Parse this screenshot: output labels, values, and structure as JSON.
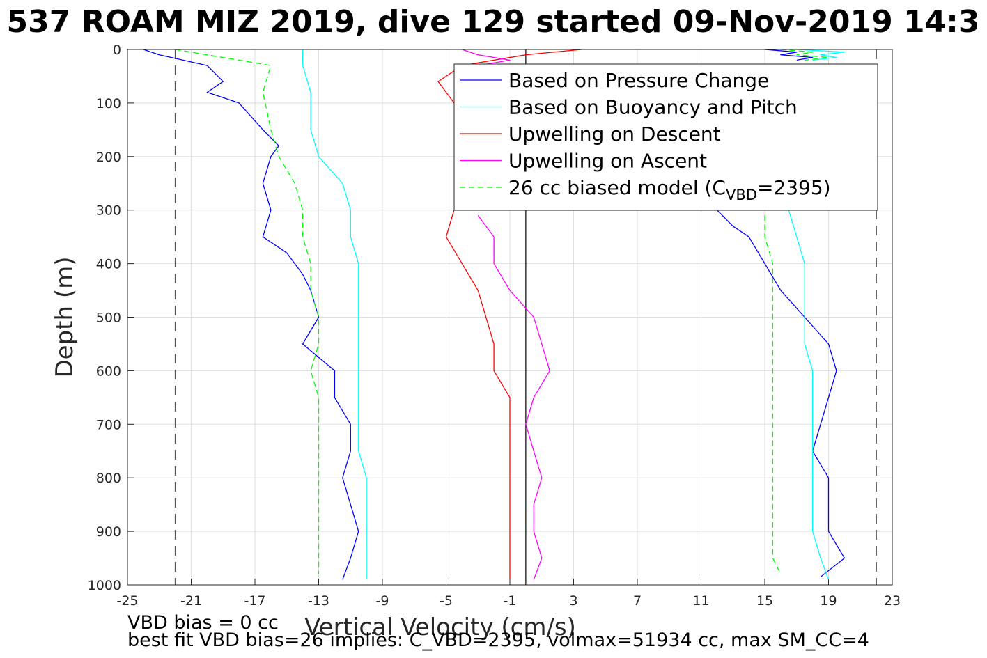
{
  "chart_data": {
    "type": "line",
    "title": "537 ROAM MIZ 2019, dive 129 started 09-Nov-2019 14:3",
    "xlabel": "Vertical Velocity (cm/s)",
    "ylabel": "Depth (m)",
    "xlim": [
      -25,
      23
    ],
    "ylim": [
      0,
      1000
    ],
    "y_reversed": true,
    "grid": true,
    "xticks": [
      "-25",
      "-21",
      "-17",
      "-13",
      "-9",
      "-5",
      "-1",
      "3",
      "7",
      "11",
      "15",
      "19",
      "23"
    ],
    "yticks": [
      "0",
      "100",
      "200",
      "300",
      "400",
      "500",
      "600",
      "700",
      "800",
      "900",
      "1000"
    ],
    "legend_position": "top-right",
    "reference_lines": {
      "zero_line_x": 0,
      "dashed_limits_x": [
        -22,
        22
      ]
    },
    "series": [
      {
        "name": "Based on Pressure Change",
        "color": "#0000ff",
        "style": "solid",
        "branches": [
          {
            "depth": [
              0,
              10,
              30,
              60,
              80,
              100,
              150,
              180,
              200,
              250,
              300,
              350,
              380,
              420,
              450,
              500,
              550,
              600,
              650,
              700,
              750,
              800,
              850,
              900,
              950,
              990
            ],
            "velocity": [
              -24,
              -23,
              -20,
              -19,
              -20,
              -18,
              -16.5,
              -15.5,
              -16,
              -16.5,
              -16,
              -16.5,
              -15,
              -14,
              -13.5,
              -13,
              -14,
              -12,
              -12,
              -11,
              -11,
              -11.5,
              -11,
              -10.5,
              -11,
              -11.5
            ]
          },
          {
            "depth": [
              985,
              950,
              900,
              850,
              800,
              750,
              700,
              650,
              600,
              550,
              500,
              450,
              400,
              350,
              330,
              300
            ],
            "velocity": [
              18.5,
              20,
              19,
              19,
              19,
              18,
              18.5,
              19,
              19.5,
              19,
              17.5,
              16,
              15,
              14,
              13,
              12
            ]
          },
          {
            "depth": [
              0,
              5,
              10,
              15,
              20
            ],
            "velocity": [
              15,
              17,
              16,
              18,
              17
            ]
          }
        ]
      },
      {
        "name": "Based on Buoyancy and Pitch",
        "color": "#00ffff",
        "style": "solid",
        "branches": [
          {
            "depth": [
              0,
              30,
              80,
              120,
              150,
              200,
              250,
              300,
              350,
              400,
              450,
              500,
              550,
              600,
              650,
              700,
              750,
              800,
              850,
              900,
              950,
              990
            ],
            "velocity": [
              -14,
              -14,
              -13.5,
              -13.5,
              -13.5,
              -13,
              -11.5,
              -11,
              -11,
              -10.5,
              -10.5,
              -10.5,
              -10.5,
              -10.5,
              -10.5,
              -10.5,
              -10.5,
              -10,
              -10,
              -10,
              -10,
              -10
            ]
          },
          {
            "depth": [
              300,
              350,
              400,
              450,
              500,
              550,
              600,
              650,
              700,
              750,
              800,
              850,
              900,
              950,
              990
            ],
            "velocity": [
              16.5,
              17,
              17.5,
              17.5,
              17.5,
              17.5,
              18,
              18,
              18,
              18,
              18,
              18,
              18,
              18.5,
              19
            ]
          },
          {
            "depth": [
              0,
              5,
              10,
              15,
              20
            ],
            "velocity": [
              17,
              20,
              18.5,
              19.5,
              18
            ]
          }
        ]
      },
      {
        "name": "Upwelling on Descent",
        "color": "#ff0000",
        "style": "solid",
        "branches": [
          {
            "depth": [
              0,
              10,
              30,
              60,
              80,
              100
            ],
            "velocity": [
              3.5,
              0,
              -4,
              -5.5,
              -5,
              -4.5
            ]
          },
          {
            "depth": [
              300,
              350,
              400,
              450,
              500,
              550,
              600,
              650,
              700,
              750,
              800,
              850,
              900,
              950,
              990
            ],
            "velocity": [
              -4.5,
              -5,
              -4,
              -3,
              -2.5,
              -2,
              -2,
              -1,
              -1,
              -1,
              -1,
              -1,
              -1,
              -1,
              -1
            ]
          }
        ]
      },
      {
        "name": "Upwelling on Ascent",
        "color": "#ff00ff",
        "style": "solid",
        "branches": [
          {
            "depth": [
              0,
              10,
              20,
              30
            ],
            "velocity": [
              -4,
              -3,
              -1,
              -3
            ]
          },
          {
            "depth": [
              310,
              350,
              400,
              450,
              500,
              550,
              600,
              650,
              700,
              750,
              800,
              850,
              900,
              950,
              990
            ],
            "velocity": [
              -3,
              -2,
              -2,
              -1,
              0.5,
              1,
              1.5,
              0.5,
              0,
              0.5,
              1,
              0.5,
              0.5,
              1,
              0.5
            ]
          }
        ]
      },
      {
        "name": "26 cc biased model (C_VBD=2395)",
        "color": "#00ff00",
        "style": "dashed",
        "branches": [
          {
            "depth": [
              0,
              30,
              80,
              150,
              200,
              250,
              300,
              350,
              400,
              450,
              500,
              550,
              600,
              650,
              700,
              750,
              800,
              850,
              900,
              950,
              980
            ],
            "velocity": [
              -22,
              -16,
              -16.5,
              -16,
              -15.5,
              -14.5,
              -14,
              -14,
              -13.5,
              -13.5,
              -13,
              -13,
              -13.5,
              -13,
              -13,
              -13,
              -13,
              -13,
              -13,
              -13,
              -13
            ]
          },
          {
            "depth": [
              310,
              350,
              400,
              450,
              500,
              550,
              600,
              650,
              700,
              750,
              800,
              850,
              900,
              950,
              980
            ],
            "velocity": [
              15,
              15,
              15.5,
              15.5,
              15.5,
              15.5,
              15.5,
              15.5,
              15.5,
              15.5,
              15.5,
              15.5,
              15.5,
              15.5,
              16
            ]
          },
          {
            "depth": [
              0,
              5,
              10,
              15,
              20
            ],
            "velocity": [
              16,
              18,
              17,
              19,
              17.5
            ]
          }
        ]
      }
    ],
    "legend": {
      "entries": [
        "Based on Pressure Change",
        "Based on Buoyancy and Pitch",
        "Upwelling on Descent",
        "Upwelling on Ascent",
        "26 cc biased model (C"
      ],
      "last_entry_sub": "VBD",
      "last_entry_tail": "=2395)"
    }
  },
  "footer": {
    "line1": "VBD bias = 0 cc",
    "line2": "best fit VBD bias=26 implies: C_VBD=2395, volmax=51934 cc, max SM_CC=4"
  }
}
